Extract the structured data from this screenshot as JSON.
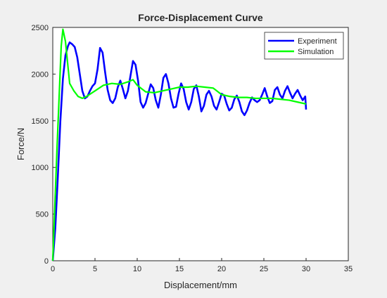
{
  "chart_data": {
    "type": "line",
    "title": "Force-Displacement Curve",
    "xlabel": "Displacement/mm",
    "ylabel": "Force/N",
    "xlim": [
      0,
      35
    ],
    "ylim": [
      0,
      2500
    ],
    "xticks": [
      "0",
      "5",
      "10",
      "15",
      "20",
      "25",
      "30",
      "35"
    ],
    "yticks": [
      "0",
      "500",
      "1000",
      "1500",
      "2000",
      "2500"
    ],
    "grid": false,
    "legend_position": "top-right",
    "series": [
      {
        "name": "Experiment",
        "color": "#0000ff",
        "x": [
          0,
          0.3,
          0.6,
          0.9,
          1.2,
          1.5,
          1.8,
          2.0,
          2.3,
          2.6,
          2.9,
          3.2,
          3.5,
          3.8,
          4.1,
          4.4,
          4.7,
          5.0,
          5.3,
          5.6,
          5.9,
          6.2,
          6.5,
          6.8,
          7.1,
          7.4,
          7.7,
          8.0,
          8.3,
          8.6,
          8.9,
          9.2,
          9.5,
          9.8,
          10.1,
          10.4,
          10.7,
          11.0,
          11.3,
          11.6,
          11.9,
          12.2,
          12.5,
          12.8,
          13.1,
          13.4,
          13.7,
          14.0,
          14.3,
          14.6,
          14.9,
          15.2,
          15.5,
          15.8,
          16.1,
          16.4,
          16.7,
          17.0,
          17.3,
          17.6,
          17.9,
          18.2,
          18.5,
          18.8,
          19.1,
          19.4,
          19.7,
          20.0,
          20.3,
          20.6,
          20.9,
          21.2,
          21.5,
          21.8,
          22.1,
          22.4,
          22.7,
          23.0,
          23.3,
          23.6,
          23.9,
          24.2,
          24.5,
          24.8,
          25.1,
          25.4,
          25.7,
          26.0,
          26.3,
          26.6,
          26.9,
          27.2,
          27.5,
          27.8,
          28.1,
          28.4,
          28.7,
          29.0,
          29.3,
          29.6,
          29.9,
          30.0
        ],
        "y": [
          0,
          350,
          900,
          1500,
          1950,
          2200,
          2300,
          2340,
          2320,
          2290,
          2180,
          2000,
          1820,
          1740,
          1760,
          1820,
          1870,
          1900,
          2050,
          2280,
          2230,
          2020,
          1830,
          1720,
          1690,
          1740,
          1860,
          1930,
          1840,
          1740,
          1820,
          1980,
          2140,
          2100,
          1930,
          1700,
          1640,
          1690,
          1790,
          1890,
          1850,
          1720,
          1640,
          1780,
          1960,
          2000,
          1900,
          1740,
          1640,
          1650,
          1790,
          1900,
          1840,
          1700,
          1620,
          1700,
          1840,
          1880,
          1760,
          1600,
          1660,
          1780,
          1820,
          1760,
          1660,
          1620,
          1700,
          1790,
          1770,
          1680,
          1610,
          1640,
          1730,
          1770,
          1700,
          1600,
          1560,
          1610,
          1690,
          1750,
          1720,
          1700,
          1720,
          1780,
          1850,
          1760,
          1690,
          1710,
          1830,
          1860,
          1780,
          1740,
          1820,
          1870,
          1800,
          1740,
          1790,
          1830,
          1770,
          1720,
          1760,
          1620
        ]
      },
      {
        "name": "Simulation",
        "color": "#00ff00",
        "x": [
          0,
          0.5,
          1.0,
          1.2,
          1.5,
          2.0,
          2.5,
          3.0,
          3.5,
          4.0,
          5.0,
          6.0,
          7.0,
          8.0,
          9.0,
          9.5,
          10.0,
          11.0,
          12.0,
          13.0,
          14.0,
          15.0,
          16.0,
          17.0,
          18.0,
          19.0,
          20.0,
          21.0,
          22.0,
          23.0,
          24.0,
          25.0,
          26.0,
          27.0,
          28.0,
          29.0,
          30.0
        ],
        "y": [
          0,
          1200,
          2300,
          2480,
          2350,
          1900,
          1820,
          1760,
          1740,
          1760,
          1820,
          1880,
          1900,
          1890,
          1920,
          1940,
          1880,
          1810,
          1800,
          1820,
          1840,
          1860,
          1860,
          1870,
          1860,
          1850,
          1780,
          1760,
          1750,
          1750,
          1740,
          1740,
          1740,
          1730,
          1720,
          1700,
          1680
        ]
      }
    ]
  }
}
